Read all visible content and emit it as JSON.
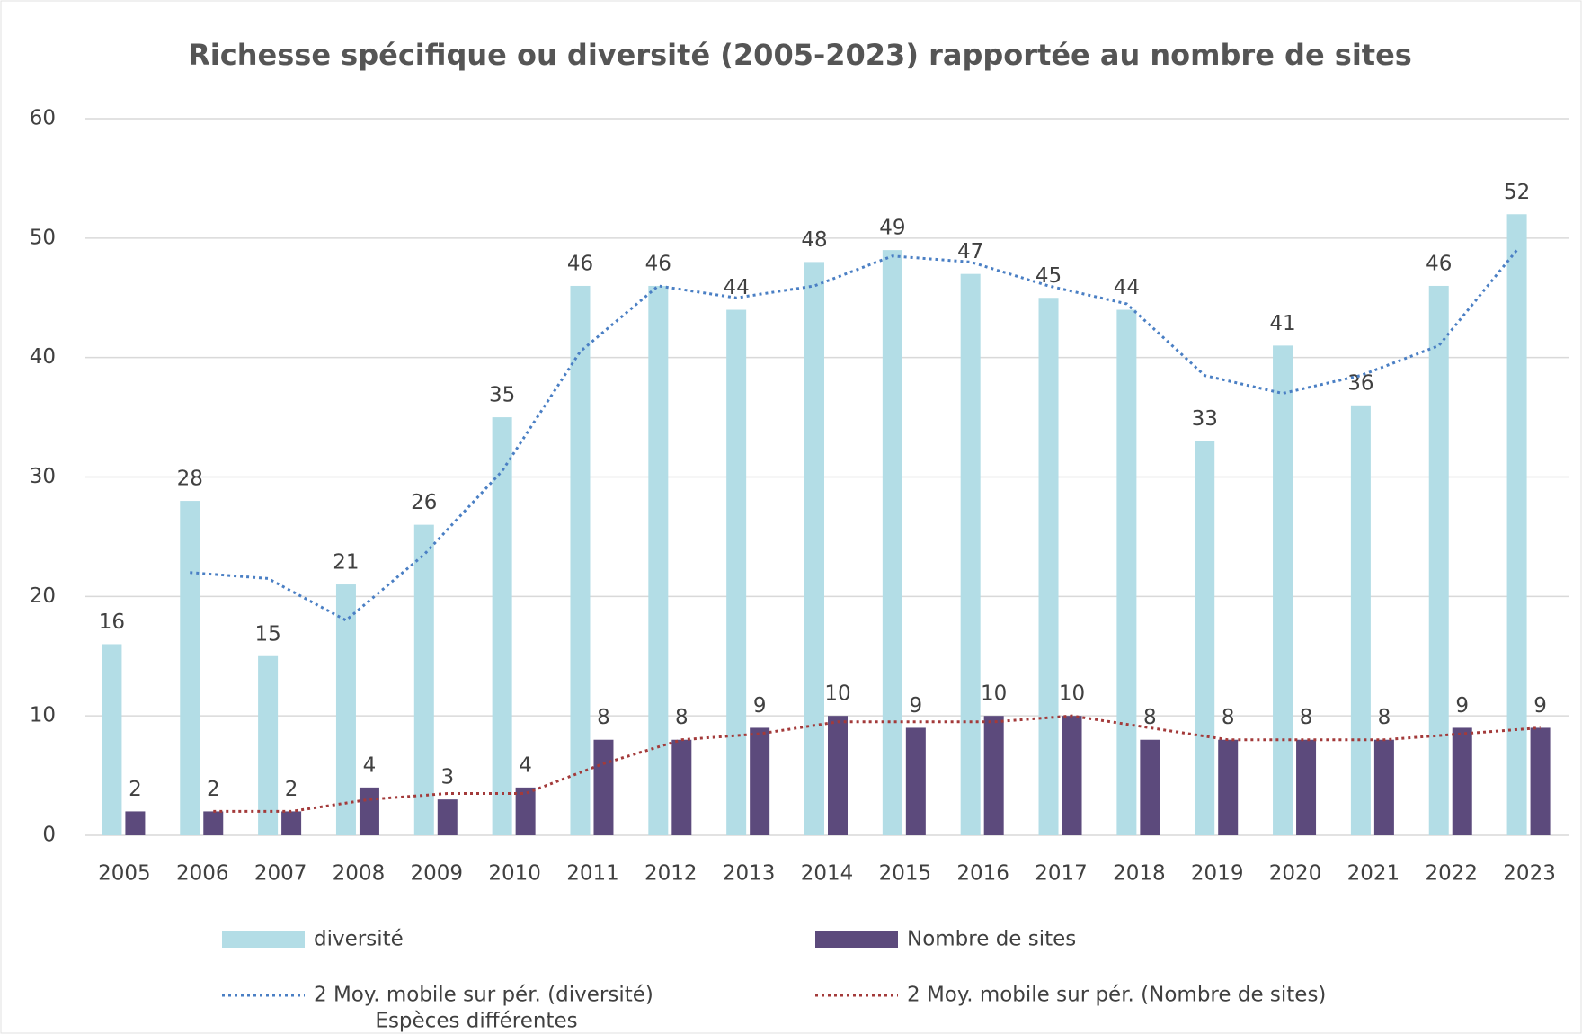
{
  "chart_data": {
    "type": "bar",
    "title": "Richesse spécifique ou diversité (2005-2023) rapportée au nombre de sites",
    "categories": [
      "2005",
      "2006",
      "2007",
      "2008",
      "2009",
      "2010",
      "2011",
      "2012",
      "2013",
      "2014",
      "2015",
      "2016",
      "2017",
      "2018",
      "2019",
      "2020",
      "2021",
      "2022",
      "2023"
    ],
    "series": [
      {
        "name": "diversité",
        "color": "#b3dde6",
        "values": [
          16,
          28,
          15,
          21,
          26,
          35,
          46,
          46,
          44,
          48,
          49,
          47,
          45,
          44,
          33,
          41,
          36,
          46,
          52
        ]
      },
      {
        "name": "Nombre de sites",
        "color": "#5c4a7c",
        "values": [
          2,
          2,
          2,
          4,
          3,
          4,
          8,
          8,
          9,
          10,
          9,
          10,
          10,
          8,
          8,
          8,
          8,
          9,
          9
        ]
      },
      {
        "name": "2 Moy. mobile sur pér. (diversité)",
        "color": "#4a7fc4",
        "type": "line",
        "values": [
          null,
          22,
          21.5,
          18,
          23.5,
          30.5,
          40.5,
          46,
          45,
          46,
          48.5,
          48,
          46,
          44.5,
          38.5,
          37,
          38.5,
          41,
          49
        ]
      },
      {
        "name": "2 Moy. mobile sur pér. (Nombre de sites)",
        "color": "#a33a3a",
        "type": "line",
        "values": [
          null,
          2,
          2,
          3,
          3.5,
          3.5,
          6,
          8,
          8.5,
          9.5,
          9.5,
          9.5,
          10,
          9,
          8,
          8,
          8,
          8.5,
          9
        ]
      }
    ],
    "ylim": [
      0,
      60
    ],
    "yticks": [
      0,
      10,
      20,
      30,
      40,
      50,
      60
    ],
    "grid": true,
    "annotation": "Espèces différentes"
  }
}
